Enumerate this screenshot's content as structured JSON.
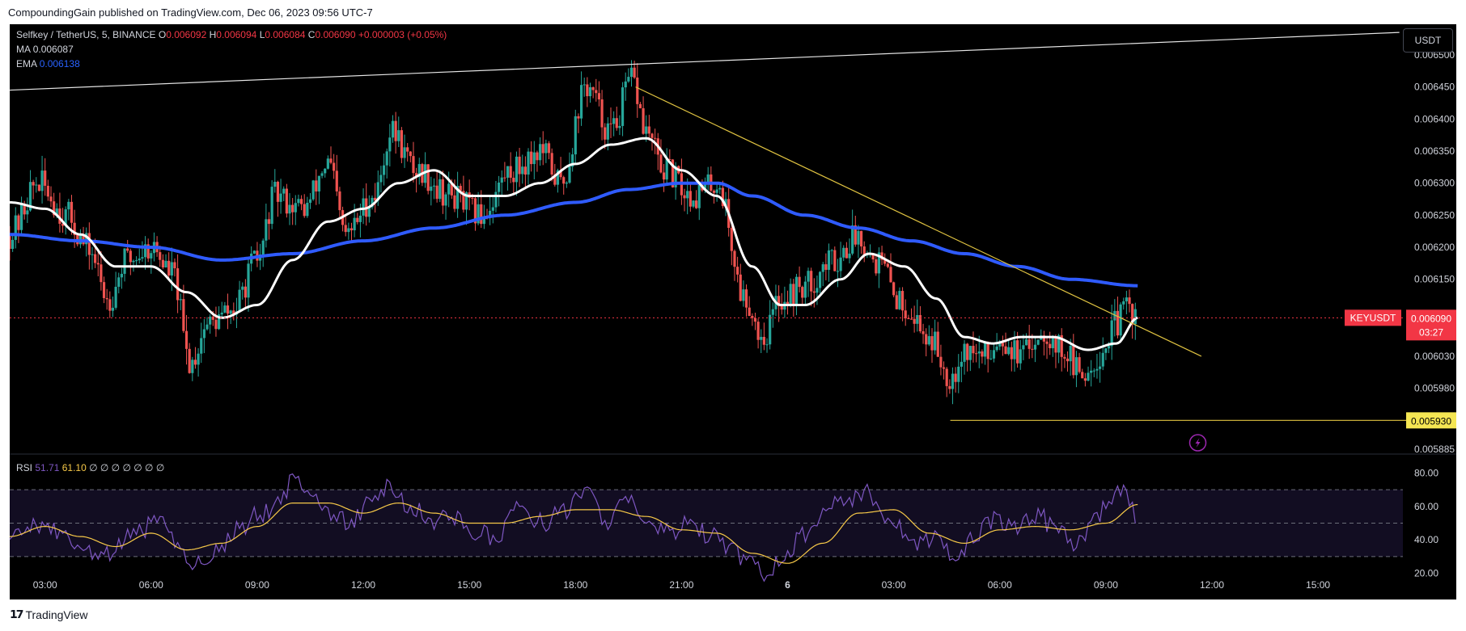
{
  "publication": "CompoundingGain published on TradingView.com, Dec 06, 2023 09:56 UTC-7",
  "footer_brand": "TradingView",
  "currency_button": "USDT",
  "legend": {
    "symbol": "Selfkey / TetherUS, 5, BINANCE",
    "o_label": "O",
    "o_value": "0.006092",
    "h_label": "H",
    "h_value": "0.006094",
    "l_label": "L",
    "l_value": "0.006084",
    "c_label": "C",
    "c_value": "0.006090",
    "change": "+0.000003 (+0.05%)",
    "ma_label": "MA",
    "ma_value": "0.006087",
    "ema_label": "EMA",
    "ema_value": "0.006138",
    "rsi_label": "RSI",
    "rsi_value": "51.71",
    "rsi_ma_value": "61.10",
    "rsi_extra": "∅ ∅ ∅ ∅ ∅ ∅ ∅"
  },
  "colors": {
    "up": "#26a69a",
    "down": "#ef5350",
    "ma": "#ffffff",
    "ema": "#2f5bff",
    "trend": "#e0c341",
    "rsi": "#7e57c2",
    "rsi_ma": "#f7c948",
    "price_tag": "#f23645"
  },
  "chart_data": {
    "type": "candlestick",
    "title": "Selfkey / TetherUS, 5, BINANCE",
    "x_ticks": [
      "03:00",
      "06:00",
      "09:00",
      "12:00",
      "15:00",
      "18:00",
      "21:00",
      "6",
      "03:00",
      "06:00",
      "09:00",
      "12:00",
      "15:00"
    ],
    "x_tick_hours": [
      3,
      6,
      9,
      12,
      15,
      18,
      21,
      24,
      27,
      30,
      33,
      36,
      39
    ],
    "x_range_hours": [
      2,
      41.4
    ],
    "last_bar_hour": 33.9,
    "y_ticks": [
      "0.006500",
      "0.006450",
      "0.006400",
      "0.006350",
      "0.006300",
      "0.006250",
      "0.006200",
      "0.006150",
      "0.006030",
      "0.005980",
      "0.005885"
    ],
    "y_range": [
      0.00588,
      0.00651
    ],
    "price_keypoints": [
      [
        2.0,
        0.00622
      ],
      [
        2.8,
        0.0063
      ],
      [
        3.6,
        0.00625
      ],
      [
        4.2,
        0.0062
      ],
      [
        4.8,
        0.00612
      ],
      [
        5.3,
        0.00618
      ],
      [
        6.0,
        0.0062
      ],
      [
        6.6,
        0.00616
      ],
      [
        7.1,
        0.00602
      ],
      [
        7.6,
        0.00608
      ],
      [
        8.3,
        0.0061
      ],
      [
        9.0,
        0.00618
      ],
      [
        9.5,
        0.00628
      ],
      [
        10.3,
        0.00626
      ],
      [
        11.0,
        0.00633
      ],
      [
        11.5,
        0.00622
      ],
      [
        12.3,
        0.00628
      ],
      [
        12.8,
        0.00638
      ],
      [
        13.5,
        0.00632
      ],
      [
        14.5,
        0.00628
      ],
      [
        15.3,
        0.00625
      ],
      [
        16.2,
        0.00632
      ],
      [
        17.0,
        0.00635
      ],
      [
        17.6,
        0.0063
      ],
      [
        18.3,
        0.00645
      ],
      [
        19.0,
        0.00638
      ],
      [
        19.6,
        0.00646
      ],
      [
        20.0,
        0.00638
      ],
      [
        20.5,
        0.00632
      ],
      [
        21.3,
        0.00628
      ],
      [
        22.0,
        0.0063
      ],
      [
        22.8,
        0.00612
      ],
      [
        23.3,
        0.00606
      ],
      [
        23.8,
        0.00612
      ],
      [
        24.5,
        0.00614
      ],
      [
        25.3,
        0.00618
      ],
      [
        26.0,
        0.00622
      ],
      [
        26.5,
        0.00618
      ],
      [
        27.3,
        0.00611
      ],
      [
        28.0,
        0.00606
      ],
      [
        28.6,
        0.006
      ],
      [
        29.0,
        0.00604
      ],
      [
        29.6,
        0.00603
      ],
      [
        30.0,
        0.00606
      ],
      [
        30.6,
        0.00603
      ],
      [
        31.2,
        0.00607
      ],
      [
        31.8,
        0.00604
      ],
      [
        32.3,
        0.006
      ],
      [
        32.8,
        0.00603
      ],
      [
        33.3,
        0.00608
      ],
      [
        33.6,
        0.00611
      ],
      [
        33.9,
        0.00609
      ]
    ],
    "ma_keypoints": [
      [
        2.0,
        0.00627
      ],
      [
        3.0,
        0.00626
      ],
      [
        4.0,
        0.00622
      ],
      [
        5.0,
        0.00617
      ],
      [
        6.0,
        0.00617
      ],
      [
        7.0,
        0.00613
      ],
      [
        8.0,
        0.00609
      ],
      [
        9.0,
        0.00611
      ],
      [
        10.0,
        0.00618
      ],
      [
        11.0,
        0.00624
      ],
      [
        12.0,
        0.00626
      ],
      [
        13.0,
        0.0063
      ],
      [
        14.0,
        0.00632
      ],
      [
        15.0,
        0.00628
      ],
      [
        16.0,
        0.00628
      ],
      [
        17.0,
        0.0063
      ],
      [
        18.0,
        0.00633
      ],
      [
        19.0,
        0.00636
      ],
      [
        20.0,
        0.00637
      ],
      [
        21.0,
        0.00632
      ],
      [
        22.0,
        0.00628
      ],
      [
        23.0,
        0.00617
      ],
      [
        23.8,
        0.00611
      ],
      [
        24.5,
        0.00611
      ],
      [
        25.5,
        0.00615
      ],
      [
        26.3,
        0.00619
      ],
      [
        27.3,
        0.00617
      ],
      [
        28.2,
        0.00612
      ],
      [
        29.0,
        0.00606
      ],
      [
        29.8,
        0.00605
      ],
      [
        30.6,
        0.00606
      ],
      [
        31.5,
        0.00606
      ],
      [
        32.5,
        0.00604
      ],
      [
        33.3,
        0.00605
      ],
      [
        33.9,
        0.00609
      ]
    ],
    "ema_keypoints": [
      [
        2.0,
        0.00622
      ],
      [
        4.0,
        0.00621
      ],
      [
        6.0,
        0.0062
      ],
      [
        8.0,
        0.00618
      ],
      [
        10.0,
        0.00619
      ],
      [
        12.0,
        0.00621
      ],
      [
        14.0,
        0.00623
      ],
      [
        16.0,
        0.00625
      ],
      [
        18.0,
        0.00627
      ],
      [
        19.5,
        0.00629
      ],
      [
        21.0,
        0.0063
      ],
      [
        22.0,
        0.0063
      ],
      [
        23.0,
        0.00628
      ],
      [
        24.5,
        0.00625
      ],
      [
        26.0,
        0.00623
      ],
      [
        27.5,
        0.00621
      ],
      [
        29.0,
        0.00619
      ],
      [
        30.5,
        0.00617
      ],
      [
        32.0,
        0.00615
      ],
      [
        33.9,
        0.00614
      ]
    ],
    "annotations": [
      {
        "type": "trendline",
        "from": [
          2.0,
          0.006445
        ],
        "to": [
          41.3,
          0.006535
        ]
      },
      {
        "type": "trendline",
        "from": [
          19.7,
          0.00645
        ],
        "to": [
          35.7,
          0.00603
        ]
      },
      {
        "type": "horizontal",
        "from_hour": 28.6,
        "value": 0.00593,
        "label": "0.005930"
      }
    ],
    "last_price": {
      "symbol": "KEYUSDT",
      "value": "0.006090",
      "countdown": "03:27",
      "price": 0.00609
    },
    "rsi": {
      "period_label": "RSI",
      "y_ticks": [
        "80.00",
        "60.00",
        "40.00",
        "20.00"
      ],
      "y_range": [
        15,
        85
      ],
      "bands": [
        30,
        50,
        70
      ],
      "rsi_keypoints": [
        [
          2.0,
          40
        ],
        [
          2.8,
          50
        ],
        [
          3.5,
          42
        ],
        [
          4.2,
          32
        ],
        [
          4.8,
          30
        ],
        [
          5.5,
          44
        ],
        [
          6.2,
          50
        ],
        [
          6.8,
          38
        ],
        [
          7.2,
          24
        ],
        [
          7.8,
          34
        ],
        [
          8.5,
          46
        ],
        [
          9.0,
          55
        ],
        [
          9.6,
          60
        ],
        [
          10.0,
          76
        ],
        [
          10.5,
          70
        ],
        [
          11.0,
          56
        ],
        [
          11.6,
          50
        ],
        [
          12.2,
          62
        ],
        [
          12.8,
          72
        ],
        [
          13.3,
          60
        ],
        [
          13.9,
          52
        ],
        [
          14.5,
          55
        ],
        [
          15.2,
          44
        ],
        [
          15.8,
          40
        ],
        [
          16.3,
          62
        ],
        [
          17.0,
          50
        ],
        [
          17.6,
          56
        ],
        [
          18.3,
          68
        ],
        [
          18.9,
          52
        ],
        [
          19.5,
          64
        ],
        [
          20.0,
          48
        ],
        [
          20.6,
          44
        ],
        [
          21.3,
          50
        ],
        [
          21.8,
          42
        ],
        [
          22.4,
          34
        ],
        [
          22.9,
          26
        ],
        [
          23.4,
          20
        ],
        [
          23.9,
          30
        ],
        [
          24.4,
          42
        ],
        [
          25.0,
          56
        ],
        [
          25.6,
          64
        ],
        [
          26.2,
          68
        ],
        [
          26.8,
          56
        ],
        [
          27.3,
          44
        ],
        [
          27.8,
          38
        ],
        [
          28.3,
          40
        ],
        [
          28.8,
          28
        ],
        [
          29.3,
          44
        ],
        [
          29.9,
          52
        ],
        [
          30.5,
          48
        ],
        [
          31.1,
          56
        ],
        [
          31.6,
          44
        ],
        [
          32.2,
          38
        ],
        [
          32.7,
          54
        ],
        [
          33.2,
          66
        ],
        [
          33.5,
          68
        ],
        [
          33.9,
          51.71
        ]
      ],
      "ma_keypoints": [
        [
          2.0,
          42
        ],
        [
          3.0,
          48
        ],
        [
          4.0,
          42
        ],
        [
          5.0,
          36
        ],
        [
          6.0,
          44
        ],
        [
          7.0,
          34
        ],
        [
          8.0,
          38
        ],
        [
          9.0,
          48
        ],
        [
          10.0,
          62
        ],
        [
          11.0,
          62
        ],
        [
          12.0,
          56
        ],
        [
          13.0,
          62
        ],
        [
          14.0,
          56
        ],
        [
          15.0,
          50
        ],
        [
          16.0,
          50
        ],
        [
          17.0,
          54
        ],
        [
          18.0,
          58
        ],
        [
          19.0,
          58
        ],
        [
          20.0,
          54
        ],
        [
          21.0,
          46
        ],
        [
          22.0,
          44
        ],
        [
          23.0,
          32
        ],
        [
          24.0,
          26
        ],
        [
          25.0,
          38
        ],
        [
          26.0,
          56
        ],
        [
          27.0,
          58
        ],
        [
          28.0,
          44
        ],
        [
          29.0,
          38
        ],
        [
          30.0,
          46
        ],
        [
          31.0,
          48
        ],
        [
          32.0,
          46
        ],
        [
          33.0,
          50
        ],
        [
          33.9,
          61.1
        ]
      ]
    }
  }
}
